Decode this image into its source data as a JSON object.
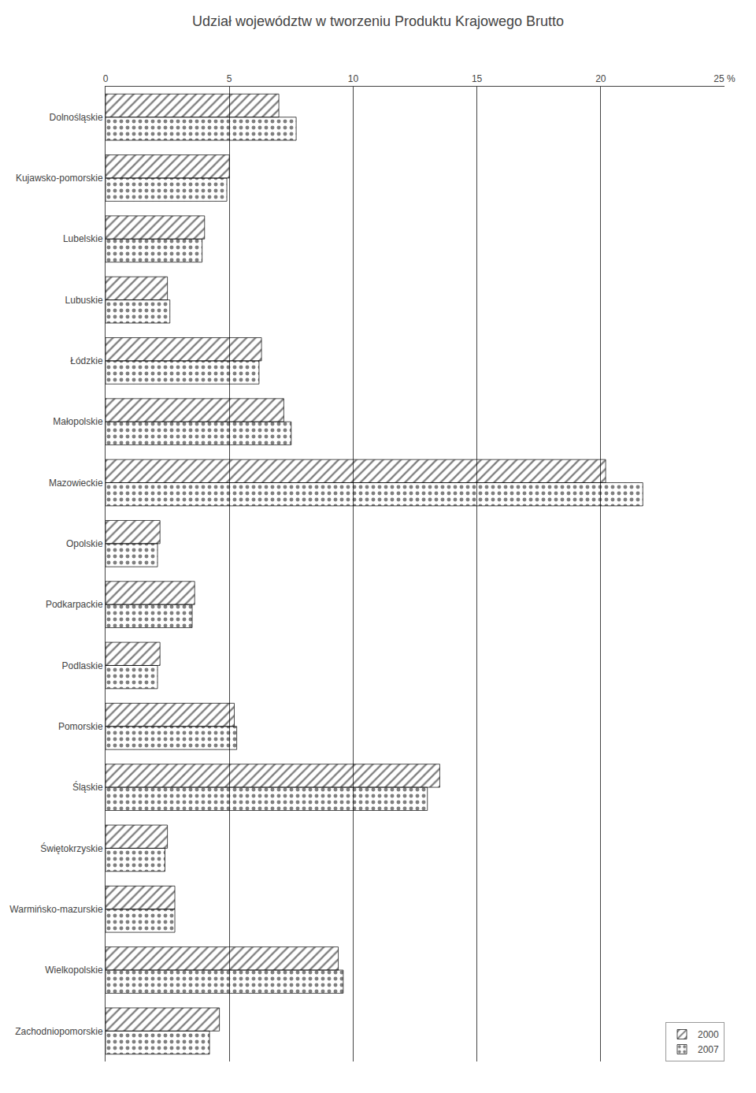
{
  "chart_data": {
    "type": "bar",
    "orientation": "horizontal",
    "title": "Udział województw w tworzeniu Produktu Krajowego Brutto",
    "categories": [
      "Dolnośląskie",
      "Kujawsko-pomorskie",
      "Lubelskie",
      "Lubuskie",
      "Łódzkie",
      "Małopolskie",
      "Mazowieckie",
      "Opolskie",
      "Podkarpackie",
      "Podlaskie",
      "Pomorskie",
      "Śląskie",
      "Świętokrzyskie",
      "Warmińsko-mazurskie",
      "Wielkopolskie",
      "Zachodniopomorskie"
    ],
    "series": [
      {
        "name": "2000",
        "color": "#cc2222",
        "values": [
          7.0,
          5.0,
          4.0,
          2.5,
          6.3,
          7.2,
          20.2,
          2.2,
          3.6,
          2.2,
          5.2,
          13.5,
          2.5,
          2.8,
          9.4,
          4.6
        ]
      },
      {
        "name": "2007",
        "color": "#e8c832",
        "values": [
          7.7,
          4.9,
          3.9,
          2.6,
          6.2,
          7.5,
          21.7,
          2.1,
          3.5,
          2.1,
          5.3,
          13.0,
          2.4,
          2.8,
          9.6,
          4.2
        ]
      }
    ],
    "xlim": [
      0,
      25
    ],
    "xticks": [
      0,
      5,
      10,
      15,
      20,
      {
        "value": 25,
        "label": "25 %"
      }
    ],
    "grid": true,
    "legend": "lower right"
  }
}
